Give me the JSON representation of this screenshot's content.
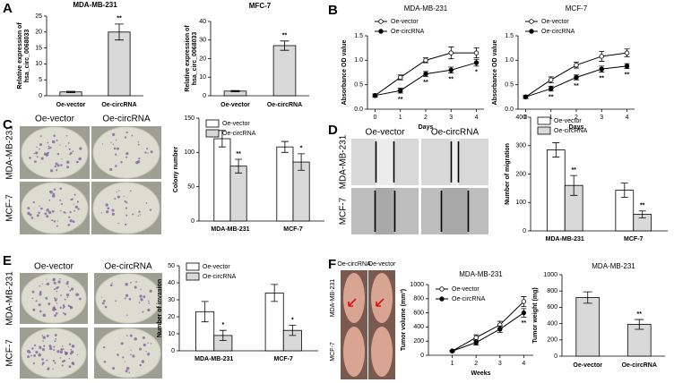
{
  "panel_labels": [
    "A",
    "B",
    "C",
    "D",
    "E",
    "F"
  ],
  "photo_panels": [
    {
      "columns": [
        "Oe-vector",
        "Oe-circRNA"
      ],
      "rows": [
        "MDA-MB-231",
        "MCF-7"
      ]
    },
    {
      "columns": [
        "Oe-vector",
        "Oe-circRNA"
      ],
      "rows": [
        "MDA-MB-231",
        "MCF-7"
      ]
    },
    {
      "columns": [
        "Oe-vector",
        "Oe-circRNA"
      ],
      "rows": [
        "MDA-MB-231",
        "MCF-7"
      ]
    },
    {
      "columns": [
        "Oe-circRNA",
        "Oe-vector"
      ],
      "rows": [
        "MDA-MB-231",
        "MCF-7"
      ]
    }
  ],
  "chart_data": [
    {
      "type": "bar",
      "title": "MDA-MB-231",
      "y_label": [
        "Relative expression of",
        "hsa_circ_0068033"
      ],
      "categories": [
        "Oe-vector",
        "Oe-circRNA"
      ],
      "values": [
        1.2,
        20
      ],
      "errors": [
        0.2,
        2.5
      ],
      "significance": [
        null,
        "**"
      ],
      "color": "#d9d9d9",
      "ylim": [
        0,
        25
      ],
      "yticks": [
        0,
        5,
        10,
        15,
        20,
        25
      ]
    },
    {
      "type": "bar",
      "title": "MFC-7",
      "y_label": [
        "Relative expression of",
        "hsa_circ_0068033"
      ],
      "categories": [
        "Oe-vector",
        "Oe-circRNA"
      ],
      "values": [
        2.5,
        27
      ],
      "errors": [
        0.3,
        2.5
      ],
      "significance": [
        null,
        "**"
      ],
      "color": "#d9d9d9",
      "ylim": [
        0,
        40
      ],
      "yticks": [
        0,
        10,
        20,
        30,
        40
      ]
    },
    {
      "type": "line",
      "title": "MDA-MB-231",
      "y_label": [
        "Absorbance OD value"
      ],
      "x_label": "Days",
      "x": [
        0,
        1,
        2,
        3,
        4
      ],
      "xlim": [
        -0.3,
        4.3
      ],
      "xticks": [
        0,
        1,
        2,
        3,
        4
      ],
      "ylim": [
        0,
        1.5
      ],
      "yticks": [
        {
          "value": 0,
          "label": "0.0"
        },
        0.5,
        {
          "value": 1,
          "label": "1.0"
        },
        1.5
      ],
      "legend": "upper left",
      "series": [
        {
          "name": "Oe-vector",
          "color": "#000000",
          "marker_fill": "#ffffff",
          "values": [
            0.28,
            0.65,
            1.0,
            1.15,
            1.15
          ],
          "errors": [
            0.03,
            0.05,
            0.05,
            0.12,
            0.1
          ]
        },
        {
          "name": "Oe-circRNA",
          "color": "#000000",
          "marker_fill": "#000000",
          "values": [
            0.28,
            0.38,
            0.72,
            0.8,
            0.95
          ],
          "errors": [
            0.03,
            0.05,
            0.05,
            0.06,
            0.07
          ],
          "significance": [
            null,
            "**",
            "**",
            "**",
            "*"
          ]
        }
      ]
    },
    {
      "type": "line",
      "title": "MCF-7",
      "y_label": [
        "Absorbance OD value"
      ],
      "x_label": "Days",
      "x": [
        0,
        1,
        2,
        3,
        4
      ],
      "xlim": [
        -0.3,
        4.3
      ],
      "xticks": [
        0,
        1,
        2,
        3,
        4
      ],
      "ylim": [
        0,
        1.5
      ],
      "yticks": [
        {
          "value": 0,
          "label": "0.0"
        },
        0.5,
        {
          "value": 1,
          "label": "1.0"
        },
        1.5
      ],
      "legend": "upper left",
      "series": [
        {
          "name": "Oe-vector",
          "color": "#000000",
          "marker_fill": "#ffffff",
          "values": [
            0.25,
            0.6,
            0.9,
            1.08,
            1.15
          ],
          "errors": [
            0.03,
            0.06,
            0.06,
            0.1,
            0.08
          ]
        },
        {
          "name": "Oe-circRNA",
          "color": "#000000",
          "marker_fill": "#000000",
          "values": [
            0.25,
            0.42,
            0.65,
            0.82,
            0.88
          ],
          "errors": [
            0.03,
            0.05,
            0.05,
            0.06,
            0.05
          ],
          "significance": [
            null,
            "**",
            "**",
            "**",
            "**"
          ]
        }
      ]
    },
    {
      "type": "grouped_bar",
      "y_label": [
        "Colony number"
      ],
      "categories": [
        "MDA-MB-231",
        "MCF-7"
      ],
      "ylim": [
        0,
        150
      ],
      "yticks": [
        0,
        50,
        100,
        150
      ],
      "legend": "upper left",
      "series": [
        {
          "name": "Oe-vector",
          "color": "#ffffff",
          "values": [
            120,
            108
          ],
          "errors": [
            12,
            8
          ]
        },
        {
          "name": "Oe-circRNA",
          "color": "#d9d9d9",
          "values": [
            80,
            86
          ],
          "errors": [
            10,
            12
          ],
          "significance": [
            "**",
            "*"
          ]
        }
      ]
    },
    {
      "type": "grouped_bar",
      "y_label": [
        "Number of migration"
      ],
      "categories": [
        "MDA-MB-231",
        "MCF-7"
      ],
      "ylim": [
        0,
        400
      ],
      "yticks": [
        0,
        100,
        200,
        300,
        400
      ],
      "legend": "upper left",
      "series": [
        {
          "name": "Oe-vector",
          "color": "#ffffff",
          "values": [
            285,
            143
          ],
          "errors": [
            25,
            25
          ]
        },
        {
          "name": "Oe-circRNA",
          "color": "#d9d9d9",
          "values": [
            160,
            58
          ],
          "errors": [
            35,
            12
          ],
          "significance": [
            "**",
            "**"
          ]
        }
      ]
    },
    {
      "type": "grouped_bar",
      "y_label": [
        "Number of invasion"
      ],
      "categories": [
        "MDA-MB-231",
        "MCF-7"
      ],
      "ylim": [
        0,
        50
      ],
      "yticks": [
        0,
        10,
        20,
        30,
        40,
        50
      ],
      "legend": "upper left",
      "series": [
        {
          "name": "Oe-vector",
          "color": "#ffffff",
          "values": [
            23,
            34
          ],
          "errors": [
            6,
            5
          ]
        },
        {
          "name": "Oe-circRNA",
          "color": "#d9d9d9",
          "values": [
            9,
            12
          ],
          "errors": [
            3,
            3
          ],
          "significance": [
            "*",
            "*"
          ]
        }
      ]
    },
    {
      "type": "line",
      "title": "MDA-MB-231",
      "y_label": [
        "Tumor volume (mm³)"
      ],
      "x_label": "Weeks",
      "x": [
        1,
        2,
        3,
        4
      ],
      "xlim": [
        0,
        4.4
      ],
      "xticks": [
        1,
        2,
        3,
        4
      ],
      "ylim": [
        0,
        1000
      ],
      "yticks": [
        0,
        200,
        400,
        600,
        800,
        1000
      ],
      "legend": "upper left",
      "series": [
        {
          "name": "Oe-vector",
          "color": "#000000",
          "marker_fill": "#ffffff",
          "values": [
            60,
            250,
            430,
            760
          ],
          "errors": [
            10,
            40,
            50,
            70
          ]
        },
        {
          "name": "Oe-circRNA",
          "color": "#000000",
          "marker_fill": "#000000",
          "values": [
            60,
            180,
            370,
            600
          ],
          "errors": [
            10,
            35,
            45,
            60
          ],
          "significance": [
            null,
            null,
            null,
            "**"
          ]
        }
      ]
    },
    {
      "type": "bar",
      "title": "MDA-MB-231",
      "y_label": [
        "Tumor weight (mg)"
      ],
      "categories": [
        "Oe-vector",
        "Oe-circRNA"
      ],
      "values": [
        720,
        390
      ],
      "errors": [
        70,
        60
      ],
      "significance": [
        null,
        "**"
      ],
      "color": "#d9d9d9",
      "ylim": [
        0,
        1000
      ],
      "yticks": [
        0,
        200,
        400,
        600,
        800,
        1000
      ]
    }
  ]
}
